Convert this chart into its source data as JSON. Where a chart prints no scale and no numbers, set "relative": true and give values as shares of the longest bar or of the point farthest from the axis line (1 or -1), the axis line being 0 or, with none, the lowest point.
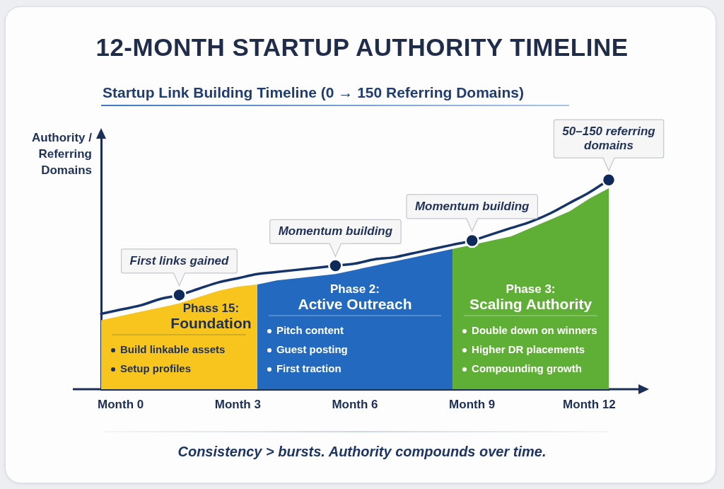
{
  "chart_data": {
    "type": "line",
    "title": "12-MONTH STARTUP AUTHORITY TIMELINE",
    "subtitle": "Startup Link Building Timeline (0 → 150 Referring Domains)",
    "ylabel": "Authority / Referring Domains",
    "relative": true,
    "tick_labels": "x",
    "categories": [
      null,
      "Month 0",
      null,
      null,
      null,
      null,
      null,
      "Month 3",
      null,
      null,
      null,
      null,
      null,
      "Month 6",
      null,
      null,
      null,
      null,
      null,
      "Month 9",
      null,
      null,
      null,
      null,
      null,
      "Month 12",
      null
    ],
    "series": [
      {
        "type": "area",
        "name": "Phass 15: Foundation",
        "color": "#f8c51e",
        "values": [
          0.33,
          0.35,
          0.37,
          0.39,
          0.41,
          0.44,
          0.47,
          0.49,
          0.5,
          null,
          null,
          null,
          null,
          null,
          null,
          null,
          null,
          null,
          null,
          null,
          null,
          null,
          null,
          null,
          null,
          null,
          null
        ]
      },
      {
        "type": "area",
        "name": "Phase 2: Active Outreach",
        "color": "#2369c0",
        "values": [
          null,
          null,
          null,
          null,
          null,
          null,
          null,
          null,
          0.5,
          0.52,
          0.53,
          0.54,
          0.55,
          0.57,
          0.59,
          0.61,
          0.63,
          0.65,
          0.67,
          null,
          null,
          null,
          null,
          null,
          null,
          null,
          null
        ]
      },
      {
        "type": "area",
        "name": "Phase 3: Scaling Authority",
        "color": "#5fae36",
        "values": [
          null,
          null,
          null,
          null,
          null,
          null,
          null,
          null,
          null,
          null,
          null,
          null,
          null,
          null,
          null,
          null,
          null,
          null,
          0.67,
          0.69,
          0.71,
          0.73,
          0.77,
          0.81,
          0.85,
          0.91,
          0.96
        ]
      },
      {
        "color": "#15346b",
        "marker": "none",
        "values": [
          0.36,
          0.38,
          0.4,
          0.43,
          0.45,
          0.48,
          0.51,
          0.53,
          0.55,
          0.56,
          0.57,
          0.58,
          0.59,
          0.6,
          0.62,
          0.63,
          0.65,
          0.67,
          0.69,
          0.71,
          0.74,
          0.77,
          0.8,
          0.84,
          0.89,
          0.94,
          1
        ]
      },
      {
        "type": "scatter",
        "color": "#0e2a5a",
        "marker": "circle",
        "values": [
          null,
          null,
          null,
          null,
          0.45,
          null,
          null,
          null,
          null,
          null,
          null,
          null,
          0.59,
          null,
          null,
          null,
          null,
          null,
          null,
          0.71,
          null,
          null,
          null,
          null,
          null,
          null,
          1
        ]
      }
    ],
    "annotations": [
      {
        "text": "First links gained",
        "y": 0.45
      },
      {
        "text": "Momentum building",
        "y": 0.59
      },
      {
        "text": "Momentum building",
        "x": "Month 9",
        "y": 0.71
      },
      {
        "text": "50–150 referring domains",
        "y": 1
      },
      "Build linkable assets",
      "Setup profiles",
      "Pitch content",
      "Guest posting",
      "First traction",
      "Double down on winners",
      "Higher DR placements",
      "Compounding growth",
      "Consistency > bursts. Authority compounds over time."
    ]
  }
}
